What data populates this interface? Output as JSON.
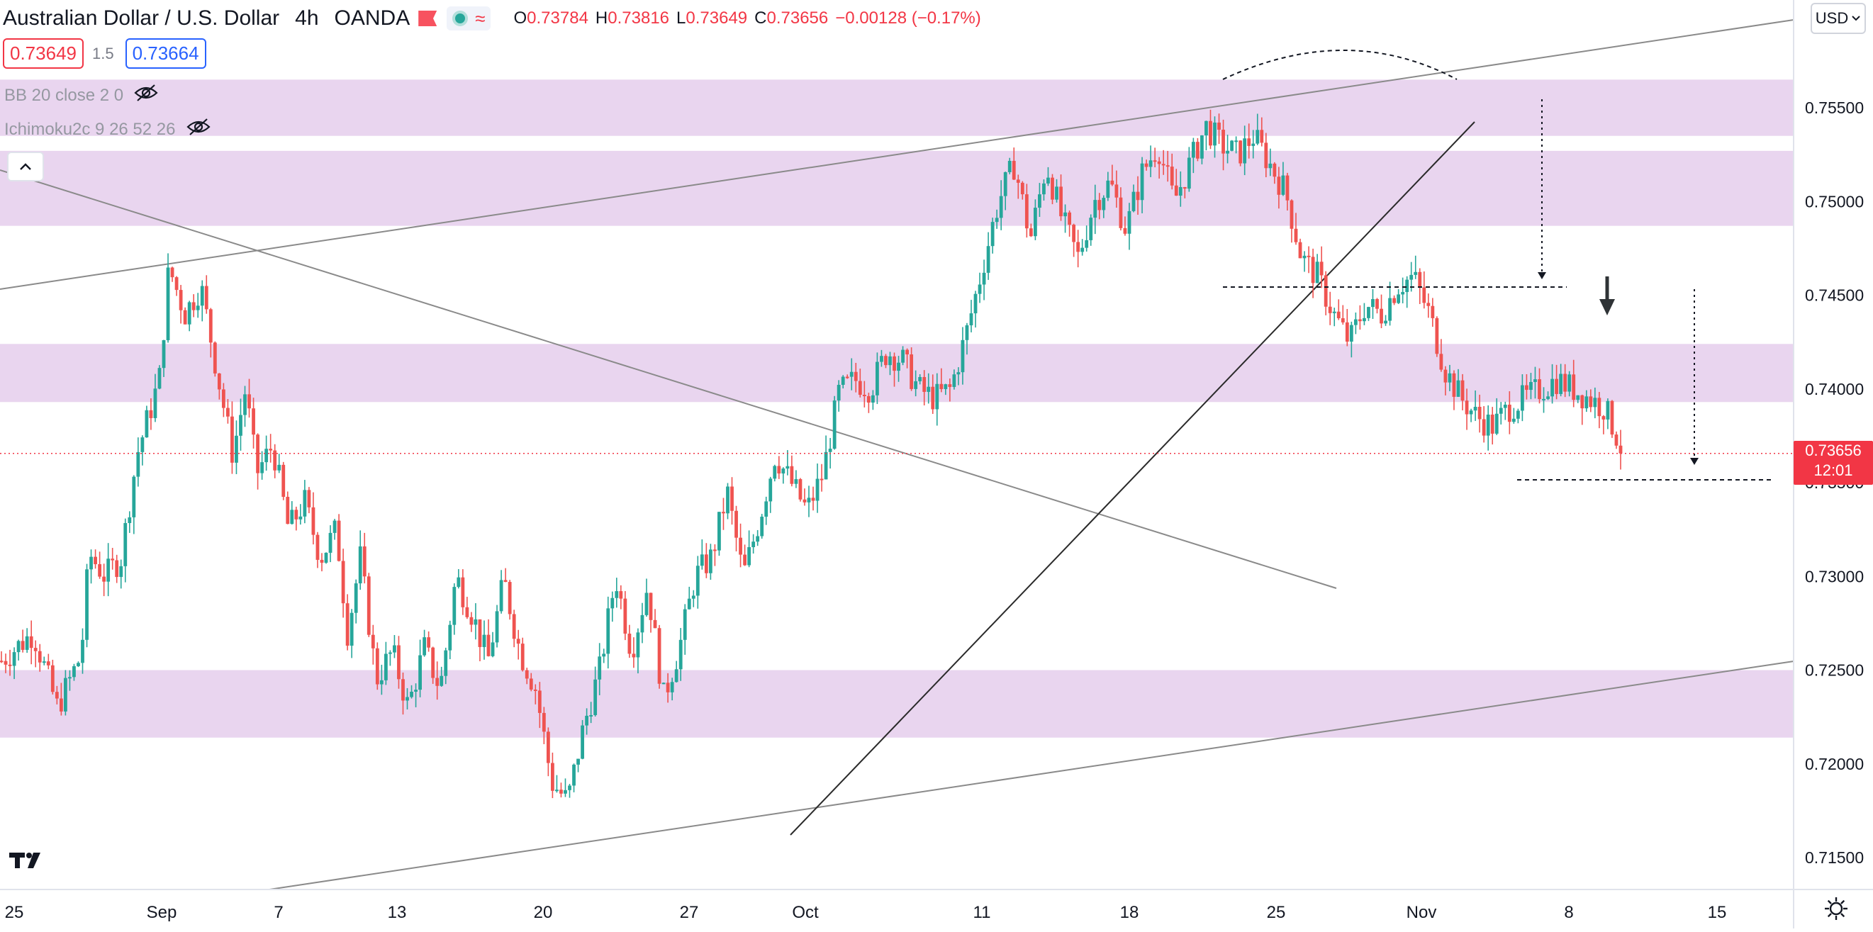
{
  "header": {
    "symbol": "Australian Dollar / U.S. Dollar",
    "interval": "4h",
    "exchange": "OANDA",
    "ohlc": {
      "o_label": "O",
      "o_value": "0.73784",
      "h_label": "H",
      "h_value": "0.73816",
      "l_label": "L",
      "l_value": "0.73649",
      "c_label": "C",
      "c_value": "0.73656",
      "change": "−0.00128 (−0.17%)"
    }
  },
  "quote": {
    "sell": "0.73649",
    "spread": "1.5",
    "buy": "0.73664"
  },
  "indicators": [
    {
      "label": "BB 20 close 2 0"
    },
    {
      "label": "Ichimoku2c 9 26 52 26"
    }
  ],
  "currency_button": "USD",
  "price_tag": {
    "price": "0.73656",
    "countdown": "12:01"
  },
  "colors": {
    "up": "#26a69a",
    "down": "#ef5350",
    "zone": "#e9d5ef",
    "trend": "#8a8a8a"
  },
  "icons": [
    "eye-off-icon",
    "chevron-up-icon",
    "chevron-down-icon",
    "tradingview-logo-icon",
    "gear-icon",
    "arrow-down-icon"
  ],
  "chart_data": {
    "type": "candlestick",
    "ylim": [
      0.714,
      0.7605
    ],
    "y_ticks": [
      {
        "value": 0.755,
        "label": "0.75500"
      },
      {
        "value": 0.75,
        "label": "0.75000"
      },
      {
        "value": 0.745,
        "label": "0.74500"
      },
      {
        "value": 0.74,
        "label": "0.74000"
      },
      {
        "value": 0.735,
        "label": "0.73500"
      },
      {
        "value": 0.73,
        "label": "0.73000"
      },
      {
        "value": 0.725,
        "label": "0.72500"
      },
      {
        "value": 0.72,
        "label": "0.72000"
      },
      {
        "value": 0.715,
        "label": "0.71500"
      }
    ],
    "x_range_days": [
      -1.5,
      47.5
    ],
    "x_ticks": [
      {
        "day": -1,
        "label": "25"
      },
      {
        "day": 4,
        "label": "Sep"
      },
      {
        "day": 7,
        "label": "7"
      },
      {
        "day": 13,
        "label": "13"
      },
      {
        "day": 20,
        "label": "20"
      },
      {
        "day": 27,
        "label": "27"
      },
      {
        "day": 31,
        "label": "Oct"
      },
      {
        "day": 41,
        "label": "11"
      },
      {
        "day": 48,
        "label": "18"
      },
      {
        "day": 55,
        "label": "25"
      },
      {
        "day": 62,
        "label": "Nov"
      },
      {
        "day": 69,
        "label": "8"
      },
      {
        "day": 76,
        "label": "15"
      }
    ],
    "zones": [
      [
        0.7535,
        0.7565
      ],
      [
        0.7487,
        0.7527
      ],
      [
        0.7393,
        0.7424
      ],
      [
        0.7214,
        0.725
      ]
    ],
    "close_path": [
      [
        -1.5,
        0.7255
      ],
      [
        0.5,
        0.727
      ],
      [
        2,
        0.723
      ],
      [
        3.5,
        0.7258
      ],
      [
        4,
        0.7312
      ],
      [
        5,
        0.73
      ],
      [
        6,
        0.731
      ],
      [
        7,
        0.7365
      ],
      [
        7.7,
        0.7385
      ],
      [
        8.4,
        0.7405
      ],
      [
        9,
        0.7465
      ],
      [
        10,
        0.744
      ],
      [
        11,
        0.7455
      ],
      [
        12,
        0.741
      ],
      [
        13,
        0.7365
      ],
      [
        13.8,
        0.74
      ],
      [
        14.5,
        0.7355
      ],
      [
        15.5,
        0.737
      ],
      [
        16.5,
        0.7325
      ],
      [
        17.5,
        0.734
      ],
      [
        18.5,
        0.731
      ],
      [
        19.5,
        0.7325
      ],
      [
        20.2,
        0.727
      ],
      [
        21,
        0.731
      ],
      [
        22,
        0.7245
      ],
      [
        23,
        0.726
      ],
      [
        24,
        0.723
      ],
      [
        25,
        0.7262
      ],
      [
        26,
        0.724
      ],
      [
        27,
        0.73
      ],
      [
        28,
        0.728
      ],
      [
        29,
        0.7255
      ],
      [
        30,
        0.7298
      ],
      [
        31,
        0.726
      ],
      [
        32,
        0.724
      ],
      [
        33,
        0.719
      ],
      [
        34,
        0.718
      ],
      [
        35,
        0.722
      ],
      [
        36,
        0.725
      ],
      [
        37,
        0.73
      ],
      [
        38,
        0.726
      ],
      [
        39,
        0.7295
      ],
      [
        40,
        0.7235
      ],
      [
        41,
        0.7262
      ],
      [
        42,
        0.73
      ],
      [
        43,
        0.731
      ],
      [
        44,
        0.7345
      ],
      [
        45,
        0.73
      ],
      [
        46,
        0.733
      ],
      [
        47,
        0.7365
      ],
      [
        48,
        0.735
      ],
      [
        49,
        0.7335
      ],
      [
        50,
        0.7355
      ],
      [
        51,
        0.7398
      ],
      [
        52,
        0.7405
      ],
      [
        53,
        0.74
      ],
      [
        54,
        0.742
      ],
      [
        55,
        0.7415
      ],
      [
        56,
        0.74
      ],
      [
        57,
        0.7395
      ],
      [
        58,
        0.74
      ],
      [
        59,
        0.743
      ],
      [
        60,
        0.7465
      ],
      [
        61,
        0.75
      ],
      [
        62,
        0.752
      ],
      [
        63,
        0.748
      ],
      [
        64,
        0.752
      ],
      [
        65,
        0.749
      ],
      [
        66,
        0.747
      ],
      [
        67,
        0.75
      ],
      [
        68,
        0.751
      ],
      [
        69,
        0.7485
      ],
      [
        70,
        0.7515
      ],
      [
        71,
        0.753
      ],
      [
        72,
        0.75
      ],
      [
        73,
        0.752
      ],
      [
        74,
        0.754
      ],
      [
        75,
        0.753
      ],
      [
        76,
        0.7525
      ],
      [
        77,
        0.7535
      ],
      [
        78,
        0.752
      ],
      [
        79,
        0.7505
      ],
      [
        80,
        0.747
      ],
      [
        81,
        0.746
      ],
      [
        82,
        0.744
      ],
      [
        83,
        0.7425
      ],
      [
        84,
        0.7445
      ],
      [
        85,
        0.744
      ],
      [
        86,
        0.7455
      ],
      [
        87,
        0.746
      ],
      [
        88,
        0.744
      ],
      [
        89,
        0.741
      ],
      [
        90,
        0.7395
      ],
      [
        91,
        0.7385
      ],
      [
        92,
        0.738
      ],
      [
        93,
        0.739
      ],
      [
        94,
        0.7395
      ],
      [
        95,
        0.74
      ],
      [
        96,
        0.7405
      ],
      [
        97,
        0.74
      ],
      [
        98,
        0.7395
      ],
      [
        99,
        0.739
      ],
      [
        100,
        0.737
      ]
    ],
    "last_close": 0.73656
  }
}
